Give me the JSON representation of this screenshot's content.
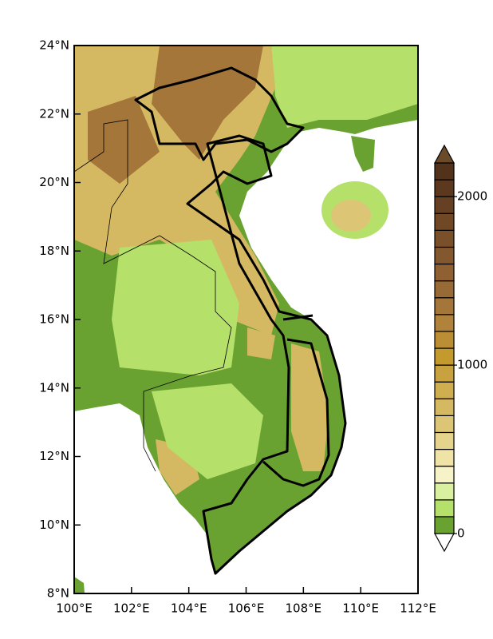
{
  "map": {
    "lon": {
      "lim": [
        100,
        112
      ],
      "ticks": [
        {
          "value": 100,
          "label": "100°E"
        },
        {
          "value": 102,
          "label": "102°E"
        },
        {
          "value": 104,
          "label": "104°E"
        },
        {
          "value": 106,
          "label": "106°E"
        },
        {
          "value": 108,
          "label": "108°E"
        },
        {
          "value": 110,
          "label": "110°E"
        },
        {
          "value": 112,
          "label": "112°E"
        }
      ]
    },
    "lat": {
      "lim": [
        8,
        24
      ],
      "ticks": [
        {
          "value": 8,
          "label": "8°N"
        },
        {
          "value": 10,
          "label": "10°N"
        },
        {
          "value": 12,
          "label": "12°N"
        },
        {
          "value": 14,
          "label": "14°N"
        },
        {
          "value": 16,
          "label": "16°N"
        },
        {
          "value": 18,
          "label": "18°N"
        },
        {
          "value": 20,
          "label": "20°N"
        },
        {
          "value": 22,
          "label": "22°N"
        },
        {
          "value": 24,
          "label": "24°N"
        }
      ]
    },
    "colorbar": {
      "lim": [
        0,
        2200
      ],
      "ticks": [
        0,
        1000,
        2000
      ],
      "colors": [
        "#6aa232",
        "#b5e06a",
        "#d8f0a0",
        "#f7f3c8",
        "#efe4a6",
        "#e6d48c",
        "#dcc676",
        "#d5b962",
        "#cfae50",
        "#c9a240",
        "#c49a2c",
        "#bb8e36",
        "#b0823a",
        "#a4763a",
        "#986a36",
        "#8e6032",
        "#84582e",
        "#7a502a",
        "#704826",
        "#664022",
        "#5c381e",
        "#53321b"
      ],
      "under": "#ffffff",
      "over": "#6b4a2a"
    }
  }
}
